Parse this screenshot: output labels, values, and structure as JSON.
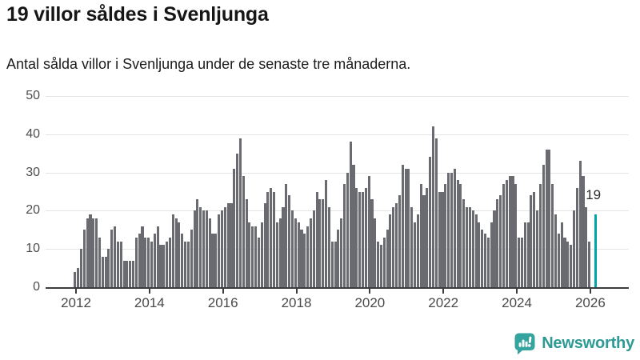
{
  "header": {
    "title": "19 villor såldes i Svenljunga",
    "subtitle": "Antal sålda villor i Svenljunga under de senaste tre månaderna."
  },
  "chart_data": {
    "type": "bar",
    "title": "19 villor såldes i Svenljunga",
    "subtitle": "Antal sålda villor i Svenljunga under de senaste tre månaderna.",
    "frequency": "monthly",
    "start": "2011-12",
    "ylabel": "",
    "xlabel": "",
    "ylim": [
      0,
      50
    ],
    "grid": true,
    "y_ticks": [
      0,
      10,
      20,
      30,
      40,
      50
    ],
    "x_tick_labels": [
      "2012",
      "2014",
      "2016",
      "2018",
      "2020",
      "2022",
      "2024",
      "2026"
    ],
    "values": [
      4,
      5,
      10,
      15,
      18,
      19,
      18,
      18,
      13,
      8,
      8,
      10,
      15,
      16,
      12,
      12,
      7,
      7,
      7,
      7,
      13,
      14,
      16,
      13,
      13,
      12,
      14,
      16,
      11,
      11,
      12,
      13,
      19,
      18,
      17,
      14,
      12,
      12,
      15,
      20,
      23,
      21,
      20,
      20,
      18,
      14,
      14,
      19,
      20,
      21,
      22,
      22,
      31,
      35,
      39,
      29,
      23,
      17,
      16,
      16,
      13,
      17,
      22,
      25,
      26,
      25,
      17,
      18,
      21,
      27,
      24,
      20,
      18,
      17,
      15,
      14,
      16,
      18,
      20,
      25,
      23,
      23,
      28,
      21,
      12,
      12,
      15,
      18,
      27,
      30,
      38,
      32,
      26,
      25,
      25,
      26,
      29,
      23,
      18,
      12,
      11,
      13,
      15,
      19,
      21,
      22,
      24,
      32,
      31,
      31,
      21,
      17,
      19,
      27,
      24,
      26,
      34,
      42,
      39,
      25,
      25,
      27,
      30,
      30,
      31,
      28,
      27,
      23,
      21,
      21,
      20,
      19,
      17,
      15,
      14,
      13,
      17,
      20,
      23,
      24,
      27,
      28,
      29,
      29,
      27,
      13,
      13,
      17,
      17,
      24,
      25,
      20,
      27,
      32,
      36,
      36,
      27,
      19,
      14,
      17,
      13,
      12,
      11,
      20,
      26,
      33,
      29,
      21,
      12
    ],
    "highlight": {
      "label": "19",
      "value": 19,
      "gap_slots": 1
    },
    "colors": {
      "bar": "#6a6a71",
      "highlight": "#00a5a8"
    }
  },
  "footer": {
    "brand": "Newsworthy",
    "brand_color": "#2d9a96",
    "icon_color": "#35a39e",
    "icon_name": "speech-bubble-bar-chart-icon"
  }
}
